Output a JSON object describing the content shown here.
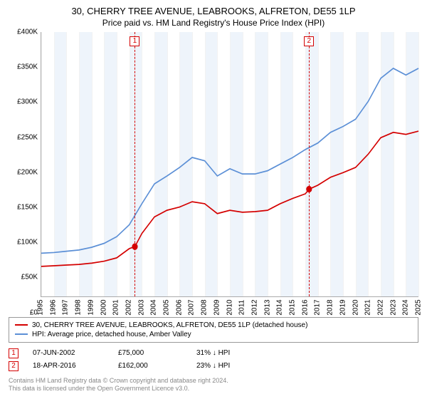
{
  "title": "30, CHERRY TREE AVENUE, LEABROOKS, ALFRETON, DE55 1LP",
  "subtitle": "Price paid vs. HM Land Registry's House Price Index (HPI)",
  "chart": {
    "type": "line",
    "background_color": "#ffffff",
    "grid_color": "#f2f2f2",
    "band_color": "#eef4fb",
    "y": {
      "min": 0,
      "max": 400000,
      "step": 50000,
      "prefix": "£",
      "suffix": "K",
      "divisor": 1000,
      "fontsize": 10
    },
    "x": {
      "years": [
        1995,
        1996,
        1997,
        1998,
        1999,
        2000,
        2001,
        2002,
        2003,
        2004,
        2005,
        2006,
        2007,
        2008,
        2009,
        2010,
        2011,
        2012,
        2013,
        2014,
        2015,
        2016,
        2017,
        2018,
        2019,
        2020,
        2021,
        2022,
        2023,
        2024,
        2025
      ],
      "fontsize": 10
    },
    "series": [
      {
        "name": "property",
        "label": "30, CHERRY TREE AVENUE, LEABROOKS, ALFRETON, DE55 1LP (detached house)",
        "color": "#d40000",
        "line_width": 1.5,
        "points": [
          [
            1995,
            45000
          ],
          [
            1996,
            46000
          ],
          [
            1997,
            47000
          ],
          [
            1998,
            48000
          ],
          [
            1999,
            50000
          ],
          [
            2000,
            53000
          ],
          [
            2001,
            58000
          ],
          [
            2002,
            72000
          ],
          [
            2002.44,
            75000
          ],
          [
            2003,
            95000
          ],
          [
            2004,
            120000
          ],
          [
            2005,
            130000
          ],
          [
            2006,
            135000
          ],
          [
            2007,
            143000
          ],
          [
            2008,
            140000
          ],
          [
            2009,
            125000
          ],
          [
            2010,
            130000
          ],
          [
            2011,
            127000
          ],
          [
            2012,
            128000
          ],
          [
            2013,
            130000
          ],
          [
            2014,
            140000
          ],
          [
            2015,
            148000
          ],
          [
            2016,
            155000
          ],
          [
            2016.3,
            162000
          ],
          [
            2017,
            168000
          ],
          [
            2018,
            180000
          ],
          [
            2019,
            187000
          ],
          [
            2020,
            195000
          ],
          [
            2021,
            215000
          ],
          [
            2022,
            240000
          ],
          [
            2023,
            248000
          ],
          [
            2024,
            245000
          ],
          [
            2025,
            250000
          ]
        ]
      },
      {
        "name": "hpi",
        "label": "HPI: Average price, detached house, Amber Valley",
        "color": "#5b8fd6",
        "line_width": 1.5,
        "points": [
          [
            1995,
            65000
          ],
          [
            1996,
            66000
          ],
          [
            1997,
            68000
          ],
          [
            1998,
            70000
          ],
          [
            1999,
            74000
          ],
          [
            2000,
            80000
          ],
          [
            2001,
            90000
          ],
          [
            2002,
            108000
          ],
          [
            2003,
            140000
          ],
          [
            2004,
            170000
          ],
          [
            2005,
            182000
          ],
          [
            2006,
            195000
          ],
          [
            2007,
            210000
          ],
          [
            2008,
            205000
          ],
          [
            2009,
            182000
          ],
          [
            2010,
            193000
          ],
          [
            2011,
            185000
          ],
          [
            2012,
            185000
          ],
          [
            2013,
            190000
          ],
          [
            2014,
            200000
          ],
          [
            2015,
            210000
          ],
          [
            2016,
            222000
          ],
          [
            2017,
            232000
          ],
          [
            2018,
            248000
          ],
          [
            2019,
            257000
          ],
          [
            2020,
            268000
          ],
          [
            2021,
            295000
          ],
          [
            2022,
            330000
          ],
          [
            2023,
            345000
          ],
          [
            2024,
            335000
          ],
          [
            2025,
            345000
          ]
        ]
      }
    ],
    "sale_markers": [
      {
        "label": "1",
        "x": 2002.44,
        "y": 75000,
        "color": "#d40000"
      },
      {
        "label": "2",
        "x": 2016.3,
        "y": 162000,
        "color": "#d40000"
      }
    ]
  },
  "sales": [
    {
      "label": "1",
      "color": "#d40000",
      "date": "07-JUN-2002",
      "price": "£75,000",
      "delta": "31% ↓ HPI"
    },
    {
      "label": "2",
      "color": "#d40000",
      "date": "18-APR-2016",
      "price": "£162,000",
      "delta": "23% ↓ HPI"
    }
  ],
  "footnote": {
    "line1": "Contains HM Land Registry data © Crown copyright and database right 2024.",
    "line2": "This data is licensed under the Open Government Licence v3.0."
  }
}
